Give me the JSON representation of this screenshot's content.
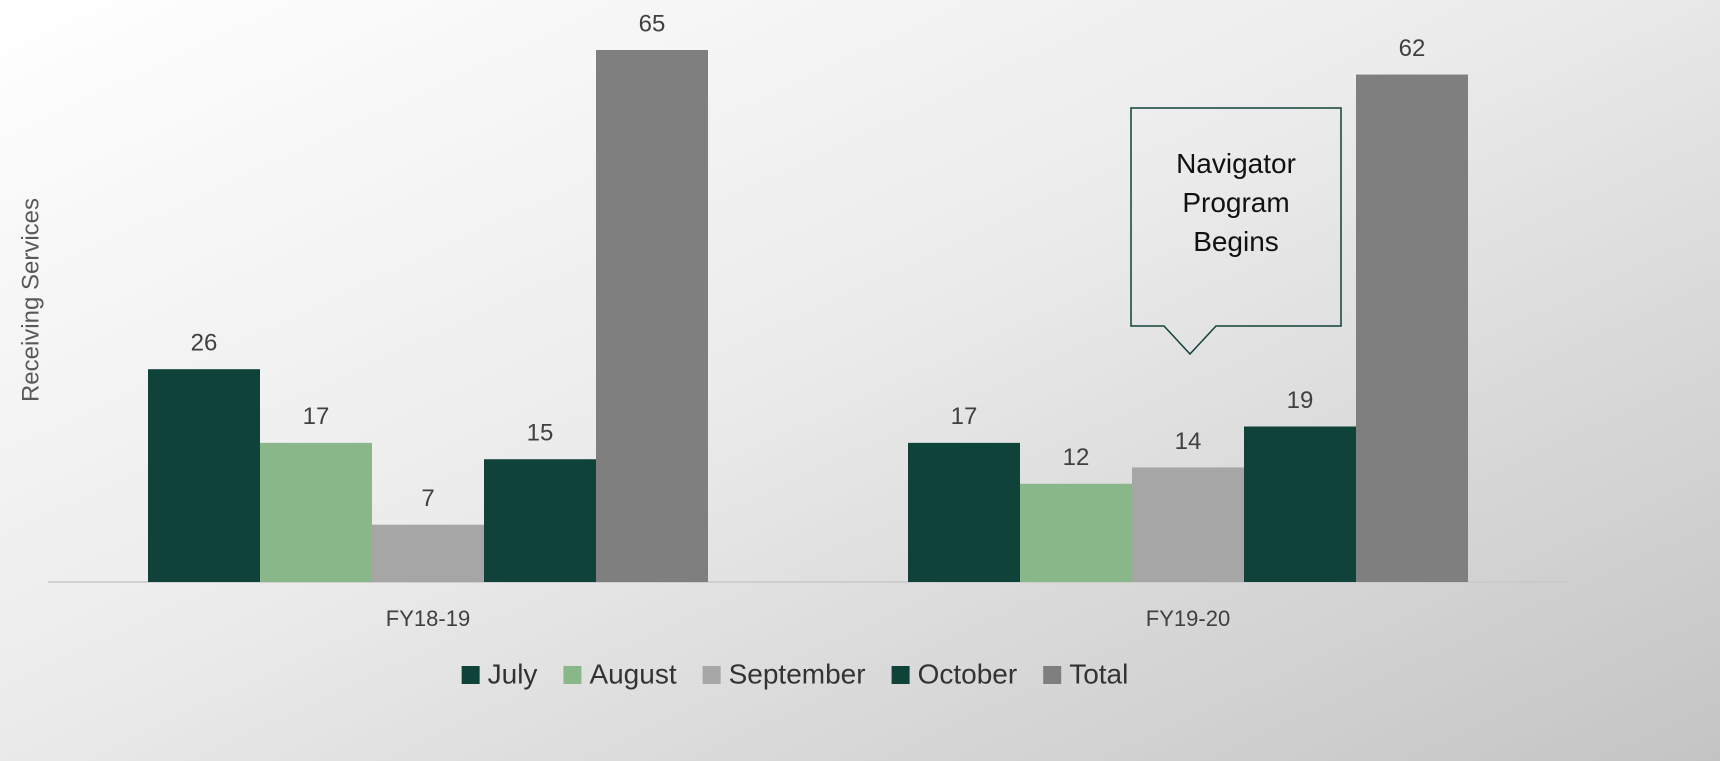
{
  "chart_data": {
    "type": "bar",
    "y_label": "Receiving Services",
    "categories": [
      "FY18-19",
      "FY19-20"
    ],
    "series": [
      {
        "name": "July",
        "color": "#0f4238",
        "values": [
          26,
          17
        ]
      },
      {
        "name": "August",
        "color": "#8ab78a",
        "values": [
          17,
          12
        ]
      },
      {
        "name": "September",
        "color": "#a6a6a6",
        "values": [
          7,
          14
        ]
      },
      {
        "name": "October",
        "color": "#0f4238",
        "values": [
          15,
          19
        ]
      },
      {
        "name": "Total",
        "color": "#7f7f7f",
        "values": [
          65,
          62
        ]
      }
    ],
    "ylim": [
      0,
      65
    ],
    "annotation": "Navigator Program Begins",
    "legend": "bottom"
  }
}
